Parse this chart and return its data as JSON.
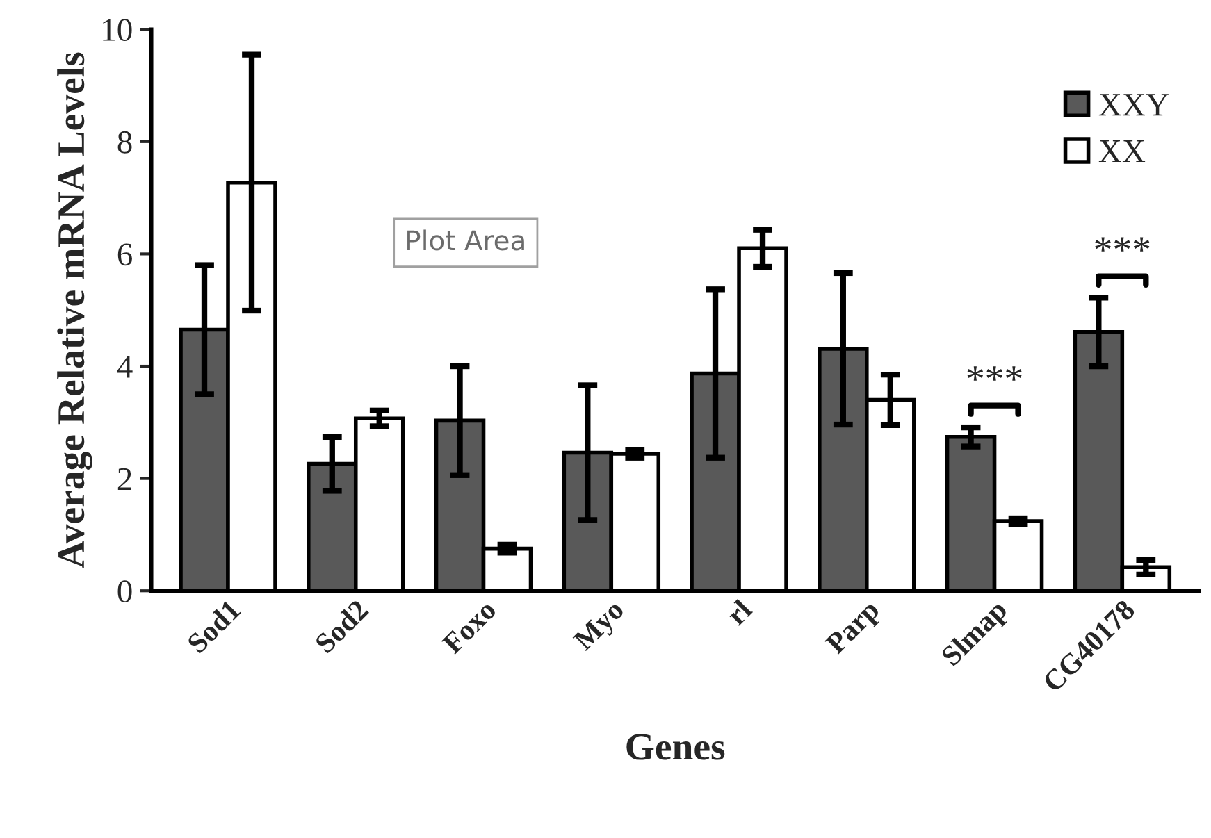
{
  "chart_data": {
    "type": "bar",
    "xlabel": "Genes",
    "ylabel": "Average Relative mRNA Levels",
    "categories": [
      "Sod1",
      "Sod2",
      "Foxo",
      "Myo",
      "rl",
      "Parp",
      "Slmap",
      "CG40178"
    ],
    "series": [
      {
        "name": "XXY",
        "color": "#595959",
        "values": [
          4.65,
          2.26,
          3.03,
          2.46,
          3.87,
          4.31,
          2.74,
          4.61
        ],
        "errors": [
          1.15,
          0.48,
          0.97,
          1.2,
          1.5,
          1.35,
          0.17,
          0.61
        ]
      },
      {
        "name": "XX",
        "color": "#ffffff",
        "values": [
          7.27,
          3.07,
          0.75,
          2.44,
          6.1,
          3.4,
          1.24,
          0.42
        ],
        "errors": [
          2.28,
          0.14,
          0.07,
          0.07,
          0.33,
          0.45,
          0.05,
          0.13
        ]
      }
    ],
    "ylim": [
      0,
      10
    ],
    "yticks": [
      0,
      2,
      4,
      6,
      8,
      10
    ],
    "grid": false,
    "legend": "top right",
    "annotations": [
      "***",
      "***",
      "Plot Area"
    ]
  }
}
